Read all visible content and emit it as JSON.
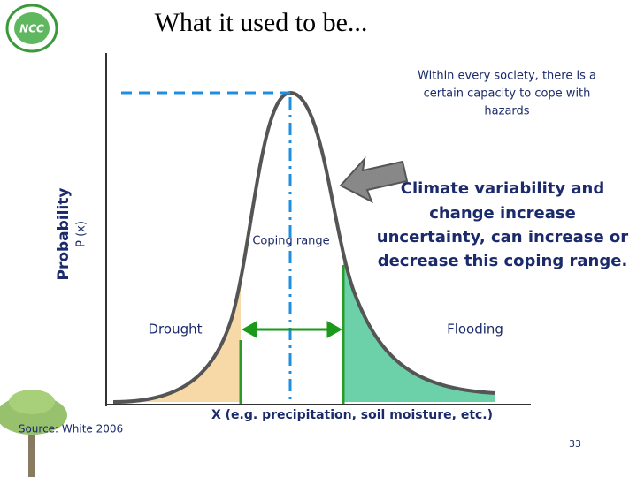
{
  "header": {
    "title": "What it used to be..."
  },
  "note": [
    "Within every society, there is a",
    "certain capacity to cope with",
    "hazards"
  ],
  "annotation": [
    "Climate variability and",
    "change increase",
    "uncertainty, can increase or",
    "decrease this coping range."
  ],
  "axes": {
    "y_label": "Probability",
    "y_sublabel": "P (x)",
    "x_label": "X (e.g. precipitation, soil moisture, etc.)"
  },
  "regions": {
    "coping": "Coping range",
    "left": "Drought",
    "right": "Flooding"
  },
  "source": "Source: White 2006",
  "page_number": "33"
}
